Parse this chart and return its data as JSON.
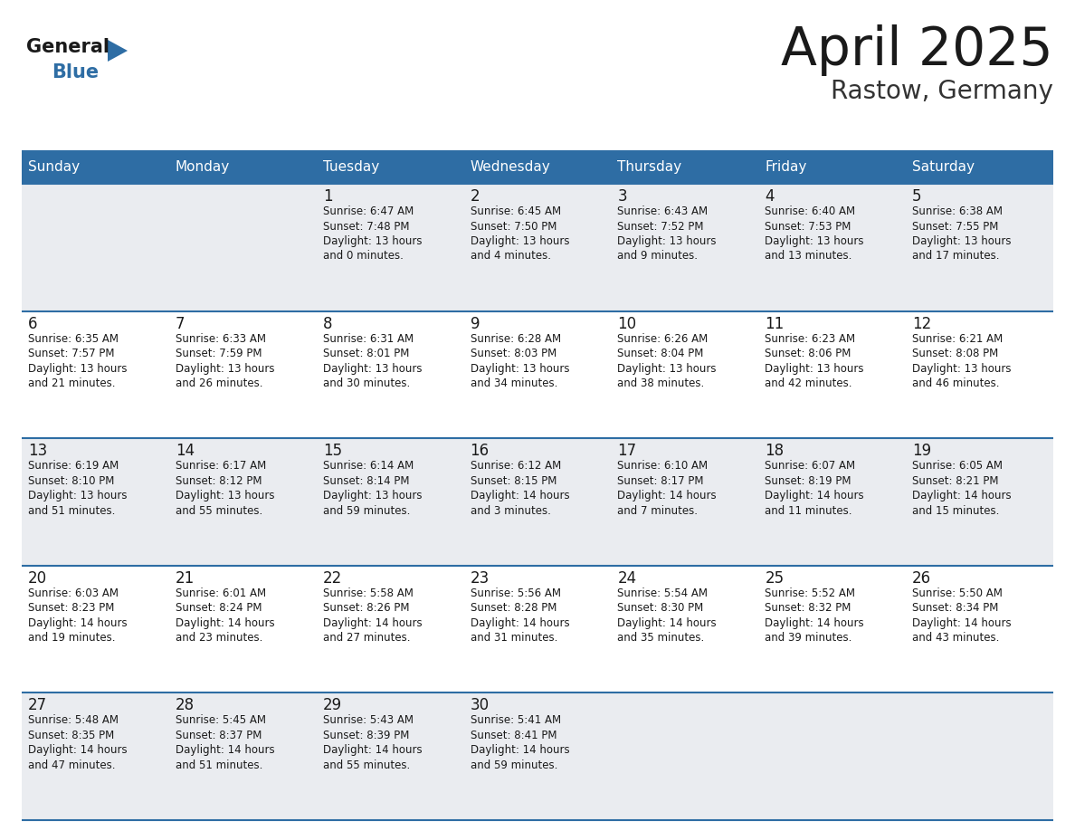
{
  "title": "April 2025",
  "subtitle": "Rastow, Germany",
  "header_bg": "#2E6DA4",
  "header_text_color": "#FFFFFF",
  "cell_bg_odd": "#EAECF0",
  "cell_bg_even": "#FFFFFF",
  "day_names": [
    "Sunday",
    "Monday",
    "Tuesday",
    "Wednesday",
    "Thursday",
    "Friday",
    "Saturday"
  ],
  "title_color": "#1a1a1a",
  "subtitle_color": "#333333",
  "day_number_color": "#1a1a1a",
  "info_text_color": "#1a1a1a",
  "grid_line_color": "#2E6DA4",
  "logo_general_color": "#1a1a1a",
  "logo_blue_color": "#2E6DA4",
  "logo_triangle_color": "#2E6DA4",
  "calendar": [
    [
      {
        "day": "",
        "info": ""
      },
      {
        "day": "",
        "info": ""
      },
      {
        "day": "1",
        "info": "Sunrise: 6:47 AM\nSunset: 7:48 PM\nDaylight: 13 hours\nand 0 minutes."
      },
      {
        "day": "2",
        "info": "Sunrise: 6:45 AM\nSunset: 7:50 PM\nDaylight: 13 hours\nand 4 minutes."
      },
      {
        "day": "3",
        "info": "Sunrise: 6:43 AM\nSunset: 7:52 PM\nDaylight: 13 hours\nand 9 minutes."
      },
      {
        "day": "4",
        "info": "Sunrise: 6:40 AM\nSunset: 7:53 PM\nDaylight: 13 hours\nand 13 minutes."
      },
      {
        "day": "5",
        "info": "Sunrise: 6:38 AM\nSunset: 7:55 PM\nDaylight: 13 hours\nand 17 minutes."
      }
    ],
    [
      {
        "day": "6",
        "info": "Sunrise: 6:35 AM\nSunset: 7:57 PM\nDaylight: 13 hours\nand 21 minutes."
      },
      {
        "day": "7",
        "info": "Sunrise: 6:33 AM\nSunset: 7:59 PM\nDaylight: 13 hours\nand 26 minutes."
      },
      {
        "day": "8",
        "info": "Sunrise: 6:31 AM\nSunset: 8:01 PM\nDaylight: 13 hours\nand 30 minutes."
      },
      {
        "day": "9",
        "info": "Sunrise: 6:28 AM\nSunset: 8:03 PM\nDaylight: 13 hours\nand 34 minutes."
      },
      {
        "day": "10",
        "info": "Sunrise: 6:26 AM\nSunset: 8:04 PM\nDaylight: 13 hours\nand 38 minutes."
      },
      {
        "day": "11",
        "info": "Sunrise: 6:23 AM\nSunset: 8:06 PM\nDaylight: 13 hours\nand 42 minutes."
      },
      {
        "day": "12",
        "info": "Sunrise: 6:21 AM\nSunset: 8:08 PM\nDaylight: 13 hours\nand 46 minutes."
      }
    ],
    [
      {
        "day": "13",
        "info": "Sunrise: 6:19 AM\nSunset: 8:10 PM\nDaylight: 13 hours\nand 51 minutes."
      },
      {
        "day": "14",
        "info": "Sunrise: 6:17 AM\nSunset: 8:12 PM\nDaylight: 13 hours\nand 55 minutes."
      },
      {
        "day": "15",
        "info": "Sunrise: 6:14 AM\nSunset: 8:14 PM\nDaylight: 13 hours\nand 59 minutes."
      },
      {
        "day": "16",
        "info": "Sunrise: 6:12 AM\nSunset: 8:15 PM\nDaylight: 14 hours\nand 3 minutes."
      },
      {
        "day": "17",
        "info": "Sunrise: 6:10 AM\nSunset: 8:17 PM\nDaylight: 14 hours\nand 7 minutes."
      },
      {
        "day": "18",
        "info": "Sunrise: 6:07 AM\nSunset: 8:19 PM\nDaylight: 14 hours\nand 11 minutes."
      },
      {
        "day": "19",
        "info": "Sunrise: 6:05 AM\nSunset: 8:21 PM\nDaylight: 14 hours\nand 15 minutes."
      }
    ],
    [
      {
        "day": "20",
        "info": "Sunrise: 6:03 AM\nSunset: 8:23 PM\nDaylight: 14 hours\nand 19 minutes."
      },
      {
        "day": "21",
        "info": "Sunrise: 6:01 AM\nSunset: 8:24 PM\nDaylight: 14 hours\nand 23 minutes."
      },
      {
        "day": "22",
        "info": "Sunrise: 5:58 AM\nSunset: 8:26 PM\nDaylight: 14 hours\nand 27 minutes."
      },
      {
        "day": "23",
        "info": "Sunrise: 5:56 AM\nSunset: 8:28 PM\nDaylight: 14 hours\nand 31 minutes."
      },
      {
        "day": "24",
        "info": "Sunrise: 5:54 AM\nSunset: 8:30 PM\nDaylight: 14 hours\nand 35 minutes."
      },
      {
        "day": "25",
        "info": "Sunrise: 5:52 AM\nSunset: 8:32 PM\nDaylight: 14 hours\nand 39 minutes."
      },
      {
        "day": "26",
        "info": "Sunrise: 5:50 AM\nSunset: 8:34 PM\nDaylight: 14 hours\nand 43 minutes."
      }
    ],
    [
      {
        "day": "27",
        "info": "Sunrise: 5:48 AM\nSunset: 8:35 PM\nDaylight: 14 hours\nand 47 minutes."
      },
      {
        "day": "28",
        "info": "Sunrise: 5:45 AM\nSunset: 8:37 PM\nDaylight: 14 hours\nand 51 minutes."
      },
      {
        "day": "29",
        "info": "Sunrise: 5:43 AM\nSunset: 8:39 PM\nDaylight: 14 hours\nand 55 minutes."
      },
      {
        "day": "30",
        "info": "Sunrise: 5:41 AM\nSunset: 8:41 PM\nDaylight: 14 hours\nand 59 minutes."
      },
      {
        "day": "",
        "info": ""
      },
      {
        "day": "",
        "info": ""
      },
      {
        "day": "",
        "info": ""
      }
    ]
  ]
}
